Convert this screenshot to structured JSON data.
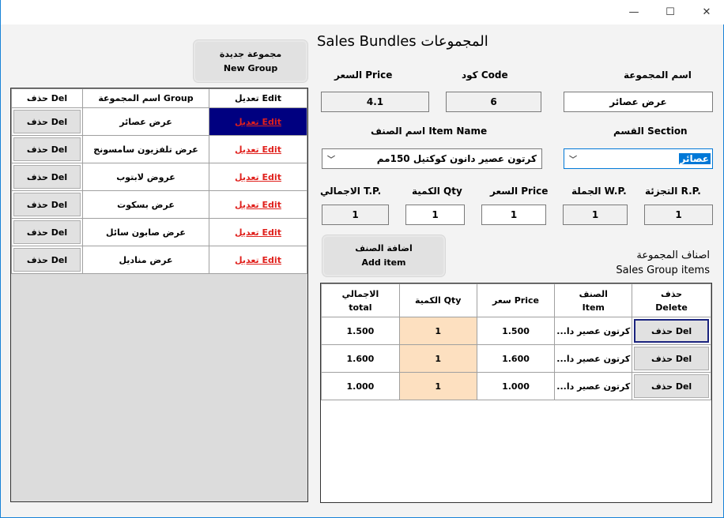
{
  "window": {
    "minimize": "—",
    "maximize": "☐",
    "close": "✕"
  },
  "title": "Sales Bundles المجموعات",
  "new_group_button": {
    "line1": "مجموعة جديدة",
    "line2": "New Group"
  },
  "groups_table": {
    "headers": [
      "حذف Del",
      "اسم المجموعة Group",
      "تعديل Edit"
    ],
    "rows": [
      {
        "del": "حذف Del",
        "name": "عرض عصائر",
        "edit": "تعديل Edit",
        "selected": true
      },
      {
        "del": "حذف Del",
        "name": "عرض تلفزيون سامسونج",
        "edit": "تعديل Edit"
      },
      {
        "del": "حذف Del",
        "name": "عروض لابتوب",
        "edit": "تعديل Edit"
      },
      {
        "del": "حذف Del",
        "name": "عرض بسكوت",
        "edit": "تعديل Edit"
      },
      {
        "del": "حذف Del",
        "name": "عرض صابون سائل",
        "edit": "تعديل Edit"
      },
      {
        "del": "حذف Del",
        "name": "عرض مناديل",
        "edit": "تعديل Edit"
      }
    ]
  },
  "form": {
    "price_label": "السعر Price",
    "price_value": "4.1",
    "code_label": "كود Code",
    "code_value": "6",
    "group_name_label": "اسم المجموعة",
    "group_name_value": "عرض عصائر",
    "item_name_label": "اسم الصنف Item Name",
    "item_name_value": "كرتون عصير دانون كوكتيل 150مم",
    "section_label": "القسم  Section",
    "section_value": "عصائر",
    "tp_label": "الاجمالي T.P.",
    "tp_value": "1",
    "qty_label": "الكمية Qty",
    "qty_value": "1",
    "item_price_label": "السعر Price",
    "item_price_value": "1",
    "wp_label": "الجملة W.P.",
    "wp_value": "1",
    "rp_label": "التجزئة R.P.",
    "rp_value": "1"
  },
  "add_item_button": {
    "line1": "اضافة الصنف",
    "line2": "Add item"
  },
  "group_items_label": {
    "line1": "اصناف المجموعة",
    "line2": "Sales Group items"
  },
  "items_table": {
    "headers": [
      {
        "l1": "الاجمالي",
        "l2": "total"
      },
      {
        "l1": "الكمية Qty",
        "l2": ""
      },
      {
        "l1": "سعر Price",
        "l2": ""
      },
      {
        "l1": "الصنف",
        "l2": "Item"
      },
      {
        "l1": "حذف",
        "l2": "Delete"
      }
    ],
    "rows": [
      {
        "total": "1.500",
        "qty": "1",
        "price": "1.500",
        "item": "كرتون عصير دا...",
        "del": "حذف Del"
      },
      {
        "total": "1.600",
        "qty": "1",
        "price": "1.600",
        "item": "كرتون عصير دا...",
        "del": "حذف Del"
      },
      {
        "total": "1.000",
        "qty": "1",
        "price": "1.000",
        "item": "كرتون عصير دا...",
        "del": "حذف Del"
      }
    ]
  },
  "colors": {
    "selection": "#000080",
    "edit_link": "#e0201c",
    "qty_cell": "#fde0c0",
    "window_border": "#1883d7"
  }
}
